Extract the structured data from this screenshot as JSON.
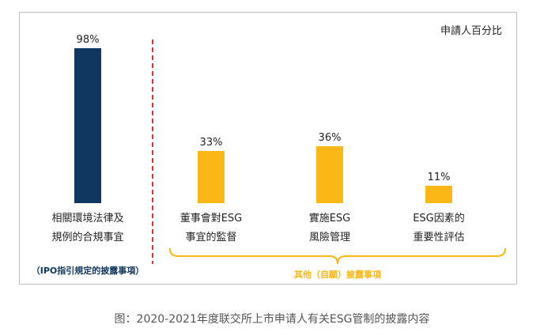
{
  "chart_data": {
    "type": "bar",
    "unit_note": "申請人百分比",
    "categories": [
      [
        "相關環境法律及",
        "規例的合規事宜"
      ],
      [
        "董事會對ESG",
        "事宜的監督"
      ],
      [
        "實施ESG",
        "風險管理"
      ],
      [
        "ESG因素的",
        "重要性評估"
      ]
    ],
    "values": [
      98,
      33,
      36,
      11
    ],
    "value_labels": [
      "98%",
      "33%",
      "36%",
      "11%"
    ],
    "bar_colors": [
      "#10375f",
      "#fbb715",
      "#fbb715",
      "#fbb715"
    ],
    "ylim": [
      0,
      100
    ],
    "groups": [
      {
        "label": "（IPO指引規定的披露事項）",
        "color": "#10375f"
      },
      {
        "label": "其他（自願）披露事項",
        "color": "#fbb715"
      }
    ],
    "divider_color": "#d9353f"
  },
  "caption": "图：2020-2021年度联交所上市申请人有关ESG管制的披露内容"
}
